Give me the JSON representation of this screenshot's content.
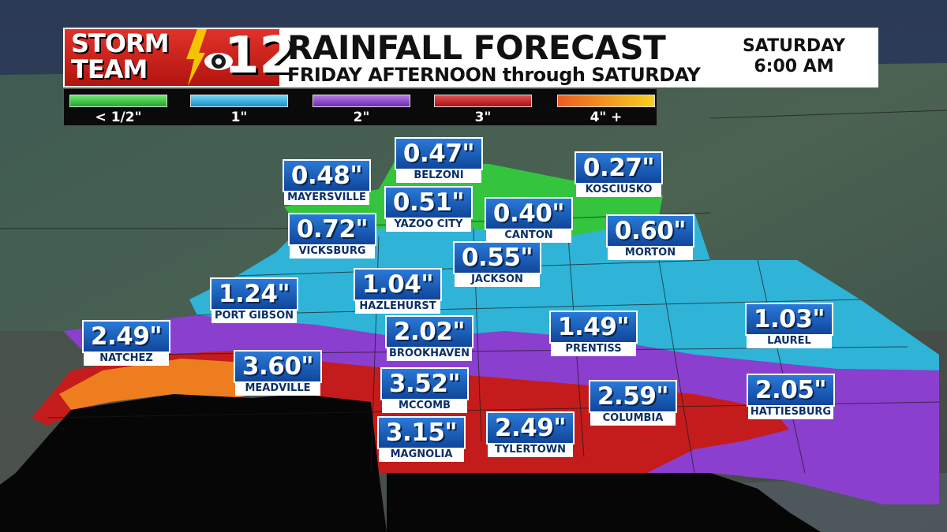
{
  "header": {
    "logo_line1": "STORM",
    "logo_line2": "TEAM",
    "logo_channel": "12",
    "title": "RAINFALL FORECAST",
    "subtitle": "FRIDAY AFTERNOON through SATURDAY",
    "valid_day": "SATURDAY",
    "valid_time": "6:00 AM"
  },
  "legend": [
    {
      "label": "< 1/2\"",
      "color": "#3fcf48"
    },
    {
      "label": "1\"",
      "color": "#2ab4e6"
    },
    {
      "label": "2\"",
      "color": "#8e3fd0"
    },
    {
      "label": "3\"",
      "color": "#c42020"
    },
    {
      "label": "4\" +",
      "color": "#f08020"
    }
  ],
  "cities": [
    {
      "name": "BELZONI",
      "value": "0.47\""
    },
    {
      "name": "MAYERSVILLE",
      "value": "0.48\""
    },
    {
      "name": "KOSCIUSKO",
      "value": "0.27\""
    },
    {
      "name": "YAZOO CITY",
      "value": "0.51\""
    },
    {
      "name": "CANTON",
      "value": "0.40\""
    },
    {
      "name": "VICKSBURG",
      "value": "0.72\""
    },
    {
      "name": "MORTON",
      "value": "0.60\""
    },
    {
      "name": "JACKSON",
      "value": "0.55\""
    },
    {
      "name": "HAZLEHURST",
      "value": "1.04\""
    },
    {
      "name": "PORT GIBSON",
      "value": "1.24\""
    },
    {
      "name": "NATCHEZ",
      "value": "2.49\""
    },
    {
      "name": "BROOKHAVEN",
      "value": "2.02\""
    },
    {
      "name": "PRENTISS",
      "value": "1.49\""
    },
    {
      "name": "LAUREL",
      "value": "1.03\""
    },
    {
      "name": "MEADVILLE",
      "value": "3.60\""
    },
    {
      "name": "MCCOMB",
      "value": "3.52\""
    },
    {
      "name": "COLUMBIA",
      "value": "2.59\""
    },
    {
      "name": "HATTIESBURG",
      "value": "2.05\""
    },
    {
      "name": "MAGNOLIA",
      "value": "3.15\""
    },
    {
      "name": "TYLERTOWN",
      "value": "2.49\""
    }
  ]
}
